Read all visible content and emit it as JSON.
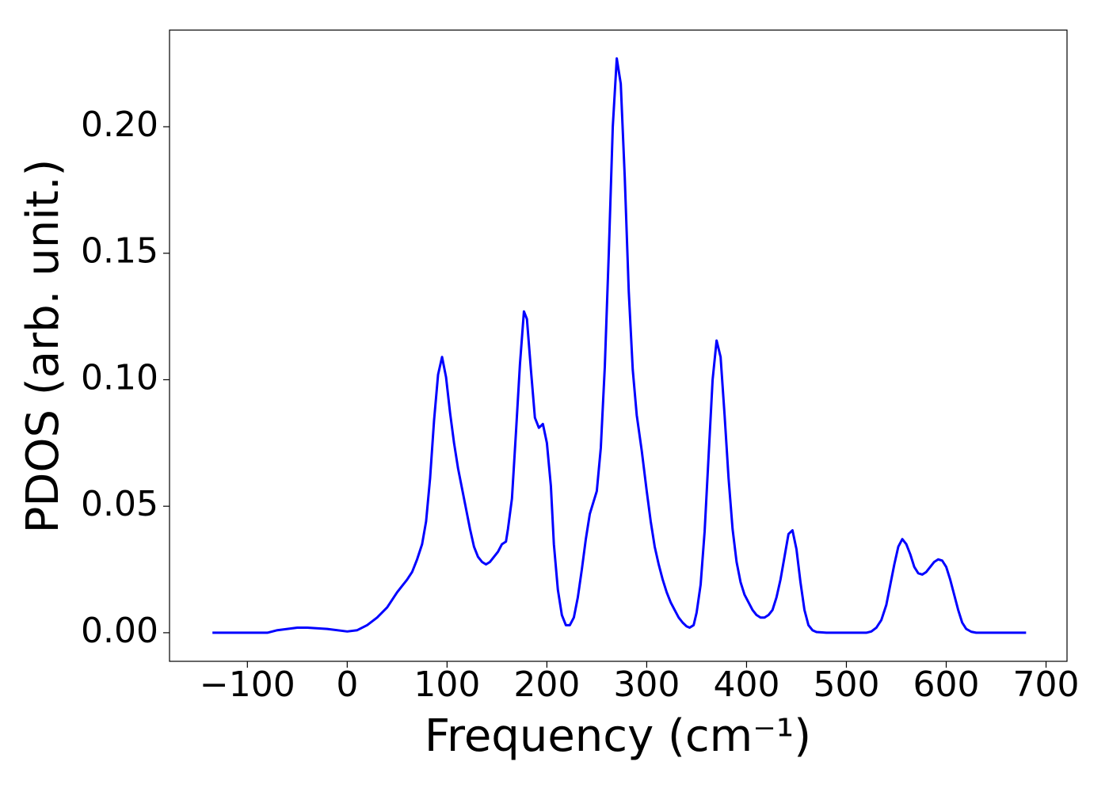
{
  "chart_data": {
    "type": "line",
    "xlabel": "Frequency (cm⁻¹)",
    "ylabel": "PDOS (arb. unit.)",
    "xlim": [
      -178,
      721
    ],
    "ylim": [
      -0.0113,
      0.2382
    ],
    "xticks": [
      {
        "value": -100,
        "label": "−100"
      },
      0,
      100,
      200,
      300,
      400,
      500,
      600,
      700
    ],
    "yticks": [
      {
        "value": 0,
        "label": "0.00"
      },
      {
        "value": 0.05,
        "label": "0.05"
      },
      {
        "value": 0.1,
        "label": "0.10"
      },
      {
        "value": 0.15,
        "label": "0.15"
      },
      {
        "value": 0.2,
        "label": "0.20"
      }
    ],
    "series": [
      {
        "color": "#0000ff",
        "x": [
          -135,
          -80,
          -70,
          -50,
          -40,
          -20,
          0,
          10,
          20,
          30,
          40,
          50,
          60,
          65,
          70,
          75,
          79,
          83,
          87,
          91,
          95,
          99,
          103,
          107,
          111,
          115,
          119,
          123,
          127,
          131,
          135,
          139,
          143,
          147,
          151,
          155,
          159,
          161,
          165,
          169,
          173,
          177,
          180,
          184,
          188,
          192,
          196,
          200,
          204,
          207,
          211,
          215,
          219,
          223,
          227,
          231,
          235,
          239,
          243,
          250,
          254,
          258,
          262,
          266,
          270,
          274,
          278,
          282,
          286,
          290,
          295,
          300,
          304,
          308,
          312,
          316,
          320,
          324,
          328,
          332,
          336,
          340,
          343,
          347,
          350,
          354,
          358,
          362,
          366,
          370,
          374,
          378,
          382,
          386,
          390,
          394,
          398,
          402,
          406,
          410,
          414,
          418,
          422,
          426,
          430,
          434,
          438,
          442,
          446,
          450,
          454,
          458,
          462,
          466,
          470,
          480,
          520,
          525,
          530,
          535,
          540,
          544,
          548,
          552,
          556,
          560,
          564,
          568,
          572,
          576,
          580,
          584,
          588,
          592,
          596,
          600,
          604,
          608,
          612,
          616,
          620,
          625,
          630,
          680
        ],
        "values": [
          0,
          0,
          0.001,
          0.002,
          0.002,
          0.0015,
          0.0005,
          0.001,
          0.003,
          0.006,
          0.01,
          0.016,
          0.021,
          0.024,
          0.029,
          0.035,
          0.044,
          0.061,
          0.084,
          0.102,
          0.109,
          0.101,
          0.087,
          0.075,
          0.065,
          0.057,
          0.049,
          0.041,
          0.034,
          0.03,
          0.028,
          0.027,
          0.028,
          0.03,
          0.032,
          0.035,
          0.036,
          0.041,
          0.053,
          0.079,
          0.106,
          0.127,
          0.124,
          0.104,
          0.085,
          0.081,
          0.0825,
          0.075,
          0.058,
          0.035,
          0.017,
          0.007,
          0.003,
          0.003,
          0.006,
          0.014,
          0.025,
          0.037,
          0.047,
          0.056,
          0.073,
          0.105,
          0.15,
          0.2,
          0.227,
          0.217,
          0.18,
          0.135,
          0.104,
          0.086,
          0.072,
          0.056,
          0.044,
          0.034,
          0.027,
          0.021,
          0.016,
          0.012,
          0.009,
          0.006,
          0.004,
          0.0025,
          0.002,
          0.003,
          0.008,
          0.019,
          0.04,
          0.07,
          0.1,
          0.1155,
          0.109,
          0.086,
          0.061,
          0.041,
          0.028,
          0.02,
          0.015,
          0.012,
          0.009,
          0.007,
          0.006,
          0.006,
          0.007,
          0.009,
          0.014,
          0.021,
          0.03,
          0.039,
          0.0405,
          0.033,
          0.02,
          0.009,
          0.003,
          0.001,
          0.0003,
          0,
          0,
          0.0005,
          0.002,
          0.005,
          0.011,
          0.019,
          0.027,
          0.034,
          0.037,
          0.035,
          0.031,
          0.026,
          0.0235,
          0.023,
          0.024,
          0.026,
          0.028,
          0.029,
          0.0285,
          0.026,
          0.021,
          0.015,
          0.009,
          0.004,
          0.0015,
          0.0004,
          0,
          0
        ]
      }
    ]
  }
}
